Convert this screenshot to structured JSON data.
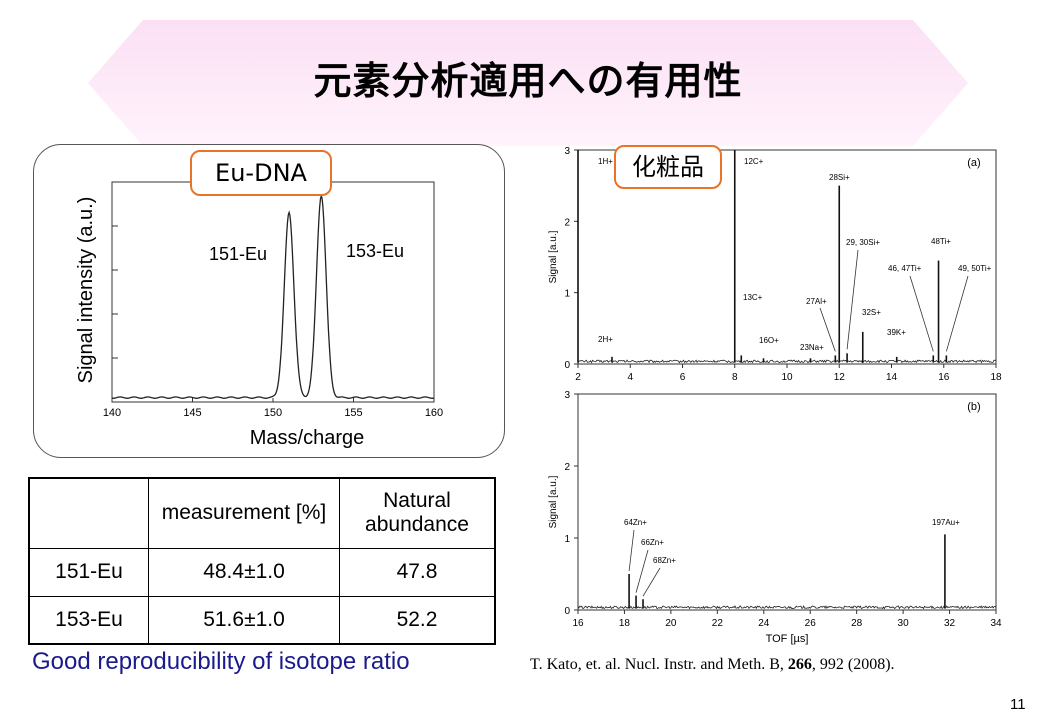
{
  "title": "元素分析適用への有用性",
  "colors": {
    "banner": "#fbe0f4",
    "tag_border": "#e8742a",
    "repro_text": "#1a1a8c"
  },
  "eu_tag": "Eu-DNA",
  "cosmetics_tag": "化粧品",
  "table": {
    "headers": [
      "",
      "measurement [%]",
      "Natural abundance"
    ],
    "rows": [
      {
        "label": "151-Eu",
        "measurement": "48.4±1.0",
        "natural": "47.8"
      },
      {
        "label": "153-Eu",
        "measurement": "51.6±1.0",
        "natural": "52.2"
      }
    ]
  },
  "reproducibility_note": "Good reproducibility of isotope ratio",
  "citation": {
    "pre": "T. Kato, et. al. Nucl. Instr. and Meth. B, ",
    "vol": "266",
    "post": ", 992 (2008)."
  },
  "page_number": "11",
  "chart_data": [
    {
      "type": "line",
      "xlabel": "Mass/charge",
      "ylabel": "Signal intensity (a.u.)",
      "xlim": [
        140,
        160
      ],
      "x_ticks": [
        "140",
        "145",
        "150",
        "155",
        "160"
      ],
      "grid": false,
      "peaks": [
        {
          "label": "151-Eu",
          "x": 151,
          "y": 0.84
        },
        {
          "label": "153-Eu",
          "x": 153,
          "y": 0.92
        }
      ]
    },
    {
      "type": "line",
      "panel": "(a)",
      "xlabel": "",
      "ylabel": "Signal [a.u.]",
      "xlim": [
        2,
        18
      ],
      "ylim": [
        0,
        3
      ],
      "x_ticks": [
        "2",
        "4",
        "6",
        "8",
        "10",
        "12",
        "14",
        "16",
        "18"
      ],
      "y_ticks": [
        "0",
        "1",
        "2",
        "3"
      ],
      "peaks": [
        {
          "label": "1H+",
          "x": 2.0,
          "y": 3.0
        },
        {
          "label": "2H+",
          "x": 3.3,
          "y": 0.1
        },
        {
          "label": "12C+",
          "x": 8.0,
          "y": 3.0
        },
        {
          "label": "13C+",
          "x": 8.25,
          "y": 0.12
        },
        {
          "label": "16O+",
          "x": 9.1,
          "y": 0.08
        },
        {
          "label": "23Na+",
          "x": 10.9,
          "y": 0.08
        },
        {
          "label": "27Al+",
          "x": 11.85,
          "y": 0.12
        },
        {
          "label": "28Si+",
          "x": 12.0,
          "y": 2.5
        },
        {
          "label": "29, 30Si+",
          "x": 12.3,
          "y": 0.15
        },
        {
          "label": "32S+",
          "x": 12.9,
          "y": 0.45
        },
        {
          "label": "39K+",
          "x": 14.2,
          "y": 0.1
        },
        {
          "label": "46, 47Ti+",
          "x": 15.6,
          "y": 0.12
        },
        {
          "label": "48Ti+",
          "x": 15.8,
          "y": 1.45
        },
        {
          "label": "49, 50Ti+",
          "x": 16.1,
          "y": 0.12
        }
      ]
    },
    {
      "type": "line",
      "panel": "(b)",
      "xlabel": "TOF [µs]",
      "ylabel": "Signal [a.u.]",
      "xlim": [
        16,
        34
      ],
      "ylim": [
        0,
        3
      ],
      "x_ticks": [
        "16",
        "18",
        "20",
        "22",
        "24",
        "26",
        "28",
        "30",
        "32",
        "34"
      ],
      "y_ticks": [
        "0",
        "1",
        "2",
        "3"
      ],
      "peaks": [
        {
          "label": "64Zn+",
          "x": 18.2,
          "y": 0.5
        },
        {
          "label": "66Zn+",
          "x": 18.5,
          "y": 0.2
        },
        {
          "label": "68Zn+",
          "x": 18.8,
          "y": 0.15
        },
        {
          "label": "197Au+",
          "x": 31.8,
          "y": 1.05
        }
      ]
    }
  ]
}
